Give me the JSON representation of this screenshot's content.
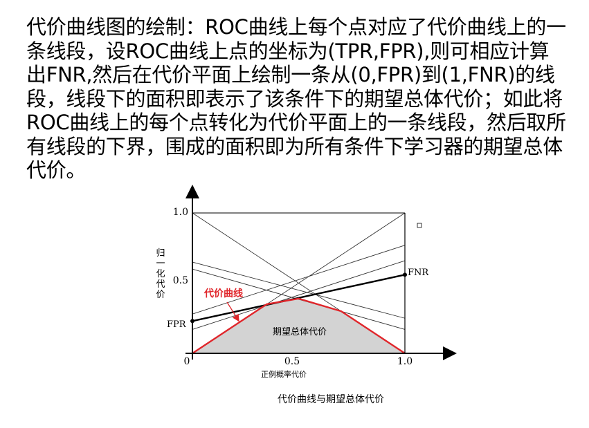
{
  "paragraph": "代价曲线图的绘制：ROC曲线上每个点对应了代价曲线上的一条线段，设ROC曲线上点的坐标为(TPR,FPR),则可相应计算出FNR,然后在代价平面上绘制一条从(0,FPR)到(1,FNR)的线段，线段下的面积即表示了该条件下的期望总体代价；如此将ROC曲线上的每个点转化为代价平面上的一条线段，然后取所有线段的下界，围成的面积即为所有条件下学习器的期望总体代价。",
  "chart_data": {
    "type": "line",
    "title": "",
    "caption": "代价曲线与期望总体代价",
    "xlabel": "正例概率代价",
    "ylabel": "归一化代价",
    "xlim": [
      0,
      1.0
    ],
    "ylim": [
      0,
      1.0
    ],
    "x_ticks": [
      "0",
      "0.5",
      "1.0"
    ],
    "y_ticks": [
      "0.5",
      "1.0"
    ],
    "grid": false,
    "segments": [
      {
        "from": [
          0,
          1.0
        ],
        "to": [
          1.0,
          0
        ]
      },
      {
        "from": [
          0,
          0
        ],
        "to": [
          1.0,
          1.0
        ]
      },
      {
        "from": [
          0,
          0.65
        ],
        "to": [
          1.0,
          0.25
        ]
      },
      {
        "from": [
          0,
          0.6
        ],
        "to": [
          1.0,
          0.17
        ]
      },
      {
        "from": [
          0,
          0.28
        ],
        "to": [
          1.0,
          0.77
        ]
      },
      {
        "from": [
          0,
          0.17
        ],
        "to": [
          1.0,
          0.66
        ]
      }
    ],
    "highlight_segment": {
      "from": [
        0,
        0.23
      ],
      "to": [
        1.0,
        0.56
      ],
      "start_label": "FPR",
      "end_label": "FNR"
    },
    "cost_curve": {
      "label": "代价曲线",
      "points": [
        [
          0,
          0
        ],
        [
          0.35,
          0.35
        ],
        [
          0.5,
          0.39
        ],
        [
          0.7,
          0.3
        ],
        [
          1.0,
          0
        ]
      ]
    },
    "area_label": "期望总体代价",
    "colors": {
      "cost_curve": "#e0262b",
      "area_fill": "#d3d3d3",
      "lines": "#333333",
      "highlight": "#000000"
    }
  }
}
